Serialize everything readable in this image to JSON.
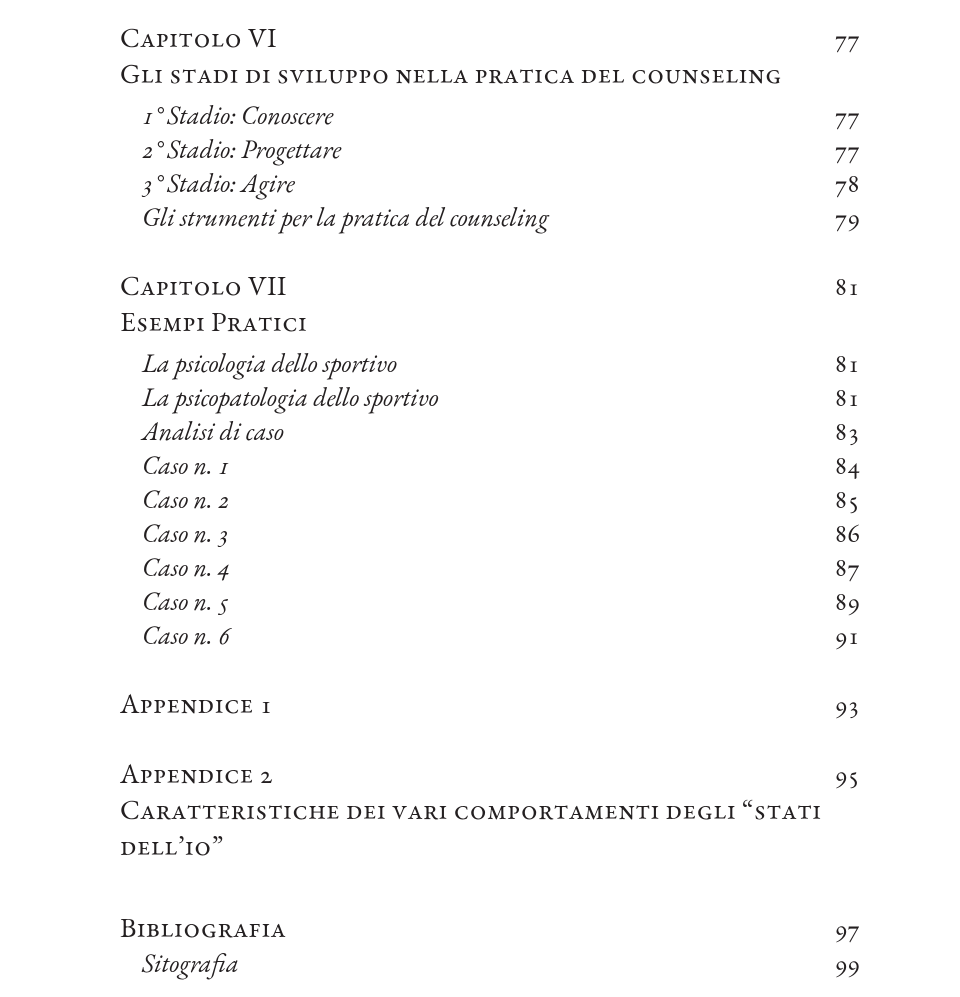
{
  "c6": {
    "heading": "Capitolo VI",
    "page": "77",
    "subheading": "Gli stadi di sviluppo nella pratica del counseling",
    "items": [
      {
        "label": "1° Stadio: Conoscere",
        "page": "77"
      },
      {
        "label": "2° Stadio: Progettare",
        "page": "77"
      },
      {
        "label": "3° Stadio: Agire",
        "page": "78"
      },
      {
        "label": "Gli strumenti per la pratica del counseling",
        "page": "79"
      }
    ]
  },
  "c7": {
    "heading": "Capitolo VII",
    "page": "81",
    "subheading": "Esempi Pratici",
    "items": [
      {
        "label": "La psicologia dello sportivo",
        "page": "81"
      },
      {
        "label": "La psicopatologia dello sportivo",
        "page": "81"
      },
      {
        "label": "Analisi di caso",
        "page": "83"
      },
      {
        "label": "Caso n. 1",
        "page": "84"
      },
      {
        "label": "Caso n. 2",
        "page": "85"
      },
      {
        "label": "Caso n. 3",
        "page": "86"
      },
      {
        "label": "Caso n. 4",
        "page": "87"
      },
      {
        "label": "Caso n. 5",
        "page": "89"
      },
      {
        "label": "Caso n. 6",
        "page": "91"
      }
    ]
  },
  "app1": {
    "heading": "Appendice 1",
    "page": "93"
  },
  "app2": {
    "heading": "Appendice 2",
    "page": "95",
    "subheading": "Caratteristiche dei vari comportamenti degli “stati dell’io”"
  },
  "bib": {
    "heading": "Bibliografia",
    "page": "97"
  },
  "sito": {
    "label": "Sitografia",
    "page": "99"
  }
}
